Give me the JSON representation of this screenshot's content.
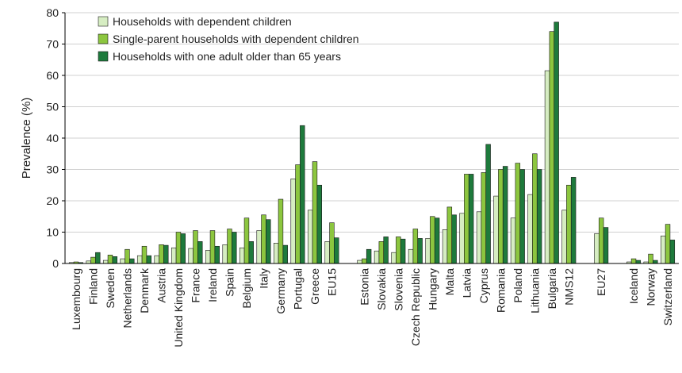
{
  "chart_data": {
    "type": "bar",
    "ylabel": "Prevalence (%)",
    "xlabel": "",
    "title": "",
    "ylim": [
      0,
      80
    ],
    "ytick_values": [
      0,
      10,
      20,
      30,
      40,
      50,
      60,
      70,
      80
    ],
    "ytick_labels": [
      "0",
      "10",
      "20",
      "30",
      "40",
      "50",
      "60",
      "70",
      "80"
    ],
    "grid": true,
    "legend_position": "top-left",
    "categories": [
      "Luxembourg",
      "Finland",
      "Sweden",
      "Netherlands",
      "Denmark",
      "Austria",
      "United Kingdom",
      "France",
      "Ireland",
      "Spain",
      "Belgium",
      "Italy",
      "Germany",
      "Portugal",
      "Greece",
      "EU15",
      "Estonia",
      "Slovakia",
      "Slovenia",
      "Czech Republic",
      "Hungary",
      "Malta",
      "Latvia",
      "Cyprus",
      "Romania",
      "Poland",
      "Lithuania",
      "Bulgaria",
      "NMS12",
      "EU27",
      "Iceland",
      "Norway",
      "Switzerland"
    ],
    "groups": [
      [
        "Luxembourg",
        "Finland",
        "Sweden",
        "Netherlands",
        "Denmark",
        "Austria",
        "United Kingdom",
        "France",
        "Ireland",
        "Spain",
        "Belgium",
        "Italy",
        "Germany",
        "Portugal",
        "Greece",
        "EU15"
      ],
      [
        "Estonia",
        "Slovakia",
        "Slovenia",
        "Czech Republic",
        "Hungary",
        "Malta",
        "Latvia",
        "Cyprus",
        "Romania",
        "Poland",
        "Lithuania",
        "Bulgaria",
        "NMS12"
      ],
      [
        "EU27"
      ],
      [
        "Iceland",
        "Norway",
        "Switzerland"
      ]
    ],
    "series": [
      {
        "name": "Households with dependent children",
        "color": "#d6edc2",
        "values": [
          0.3,
          0.8,
          1.0,
          1.5,
          2.5,
          2.5,
          5.0,
          4.8,
          4.2,
          6.0,
          5.0,
          10.5,
          6.5,
          27.0,
          17.0,
          7.0,
          1.0,
          4.0,
          3.5,
          4.5,
          8.0,
          10.8,
          16.0,
          16.5,
          21.5,
          14.5,
          22.0,
          61.5,
          17.0,
          9.5,
          0.5,
          0.5,
          8.8
        ]
      },
      {
        "name": "Single-parent households with dependent children",
        "color": "#8cc63f",
        "values": [
          0.5,
          2.0,
          2.7,
          4.5,
          5.5,
          6.0,
          10.0,
          10.5,
          10.5,
          11.0,
          14.5,
          15.5,
          20.5,
          31.5,
          32.5,
          13.0,
          1.5,
          7.0,
          8.5,
          11.0,
          15.0,
          18.0,
          28.5,
          29.0,
          30.0,
          32.0,
          35.0,
          74.0,
          25.0,
          14.5,
          1.5,
          3.0,
          12.5
        ]
      },
      {
        "name": "Households with one adult older than 65 years",
        "color": "#1e7a3c",
        "values": [
          0.3,
          3.5,
          2.2,
          1.5,
          2.5,
          5.8,
          9.5,
          7.0,
          5.5,
          10.0,
          7.0,
          14.0,
          5.8,
          44.0,
          25.0,
          8.2,
          4.5,
          8.5,
          7.8,
          8.0,
          14.5,
          15.5,
          28.5,
          38.0,
          31.0,
          30.0,
          30.0,
          77.0,
          27.5,
          11.5,
          1.0,
          1.0,
          7.5
        ]
      }
    ]
  }
}
